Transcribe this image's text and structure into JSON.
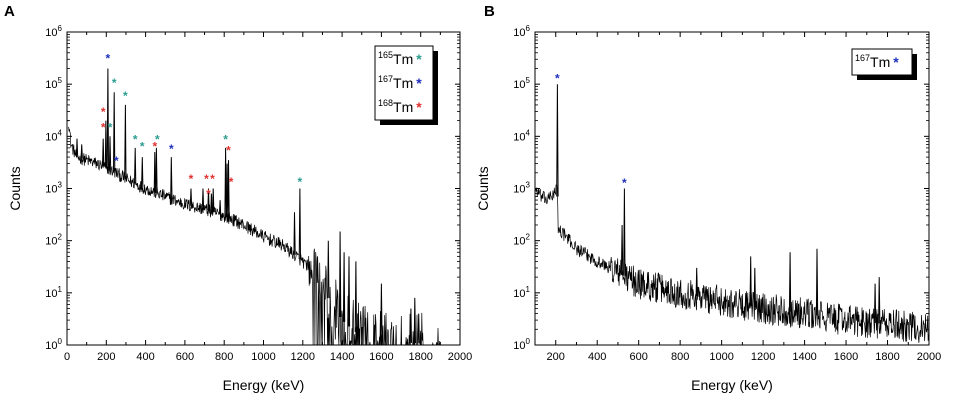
{
  "chart_data": [
    {
      "panel_label": "A",
      "type": "line",
      "xlabel": "Energy (keV)",
      "ylabel": "Counts",
      "xlim": [
        0,
        2000
      ],
      "ylim_log10": [
        0,
        6
      ],
      "x_ticks": [
        "0",
        "200",
        "400",
        "600",
        "800",
        "1000",
        "1200",
        "1400",
        "1600",
        "1800",
        "2000"
      ],
      "y_ticks": [
        {
          "base": "10",
          "exp": "0"
        },
        {
          "base": "10",
          "exp": "1"
        },
        {
          "base": "10",
          "exp": "2"
        },
        {
          "base": "10",
          "exp": "3"
        },
        {
          "base": "10",
          "exp": "4"
        },
        {
          "base": "10",
          "exp": "5"
        },
        {
          "base": "10",
          "exp": "6"
        }
      ],
      "legend": {
        "position": "top-right",
        "entries": [
          {
            "mass": "165",
            "element": "Tm",
            "marker": "*",
            "color": "#2a9d8f"
          },
          {
            "mass": "167",
            "element": "Tm",
            "marker": "*",
            "color": "#1f2fbf"
          },
          {
            "mass": "168",
            "element": "Tm",
            "marker": "*",
            "color": "#e03131"
          }
        ]
      },
      "continuum": [
        [
          8,
          20000
        ],
        [
          20,
          7000
        ],
        [
          50,
          4000
        ],
        [
          100,
          3500
        ],
        [
          150,
          3000
        ],
        [
          200,
          2500
        ],
        [
          250,
          2000
        ],
        [
          300,
          1500
        ],
        [
          400,
          1000
        ],
        [
          500,
          700
        ],
        [
          600,
          500
        ],
        [
          700,
          400
        ],
        [
          800,
          300
        ],
        [
          900,
          200
        ],
        [
          1000,
          120
        ],
        [
          1100,
          80
        ],
        [
          1200,
          40
        ],
        [
          1250,
          20
        ],
        [
          1300,
          12
        ],
        [
          1350,
          6
        ],
        [
          1400,
          3
        ],
        [
          1450,
          2
        ],
        [
          1500,
          1.5
        ],
        [
          1600,
          1.2
        ],
        [
          1900,
          1
        ]
      ],
      "peaks": [
        [
          5,
          20000
        ],
        [
          51,
          9000
        ],
        [
          75,
          7000
        ],
        [
          184,
          9000
        ],
        [
          198,
          20000
        ],
        [
          208,
          200000
        ],
        [
          219,
          10000
        ],
        [
          240,
          70000
        ],
        [
          297,
          40000
        ],
        [
          347,
          6000
        ],
        [
          383,
          4000
        ],
        [
          447,
          5000
        ],
        [
          455,
          6000
        ],
        [
          531,
          4000
        ],
        [
          631,
          1000
        ],
        [
          692,
          1000
        ],
        [
          720,
          1000
        ],
        [
          735,
          800
        ],
        [
          744,
          1000
        ],
        [
          779,
          600
        ],
        [
          807,
          6000
        ],
        [
          815,
          3000
        ],
        [
          822,
          3500
        ],
        [
          1158,
          350
        ],
        [
          1185,
          1000
        ],
        [
          1275,
          50
        ],
        [
          1330,
          100
        ],
        [
          1390,
          150
        ],
        [
          1410,
          60
        ],
        [
          1435,
          50
        ],
        [
          1470,
          40
        ],
        [
          1600,
          15
        ],
        [
          1750,
          5
        ],
        [
          1770,
          8
        ],
        [
          1790,
          4
        ]
      ],
      "noise_cutoff": 1250,
      "markers": [
        {
          "x": 208,
          "y": 340000,
          "series": "167"
        },
        {
          "x": 240,
          "y": 115000,
          "series": "165"
        },
        {
          "x": 297,
          "y": 65000,
          "series": "165"
        },
        {
          "x": 184,
          "y": 32000,
          "series": "168"
        },
        {
          "x": 184,
          "y": 16000,
          "series": "168"
        },
        {
          "x": 219,
          "y": 16000,
          "series": "165"
        },
        {
          "x": 251,
          "y": 3700,
          "series": "167"
        },
        {
          "x": 347,
          "y": 9600,
          "series": "165"
        },
        {
          "x": 383,
          "y": 7000,
          "series": "165"
        },
        {
          "x": 447,
          "y": 7000,
          "series": "168"
        },
        {
          "x": 460,
          "y": 9600,
          "series": "165"
        },
        {
          "x": 531,
          "y": 6200,
          "series": "167"
        },
        {
          "x": 631,
          "y": 1650,
          "series": "168"
        },
        {
          "x": 710,
          "y": 1650,
          "series": "168"
        },
        {
          "x": 740,
          "y": 1650,
          "series": "168"
        },
        {
          "x": 720,
          "y": 850,
          "series": "168"
        },
        {
          "x": 807,
          "y": 9600,
          "series": "165"
        },
        {
          "x": 822,
          "y": 5800,
          "series": "168"
        },
        {
          "x": 835,
          "y": 1450,
          "series": "168"
        },
        {
          "x": 1185,
          "y": 1450,
          "series": "165"
        }
      ]
    },
    {
      "panel_label": "B",
      "type": "line",
      "xlabel": "Energy (keV)",
      "ylabel": "Counts",
      "xlim": [
        100,
        2000
      ],
      "ylim_log10": [
        0,
        6
      ],
      "x_ticks": [
        "200",
        "400",
        "600",
        "800",
        "1000",
        "1200",
        "1400",
        "1600",
        "1800",
        "2000"
      ],
      "y_ticks": [
        {
          "base": "10",
          "exp": "0"
        },
        {
          "base": "10",
          "exp": "1"
        },
        {
          "base": "10",
          "exp": "2"
        },
        {
          "base": "10",
          "exp": "3"
        },
        {
          "base": "10",
          "exp": "4"
        },
        {
          "base": "10",
          "exp": "5"
        },
        {
          "base": "10",
          "exp": "6"
        }
      ],
      "legend": {
        "position": "top-right",
        "entries": [
          {
            "mass": "167",
            "element": "Tm",
            "marker": "*",
            "color": "#1f2fbf"
          }
        ]
      },
      "continuum": [
        [
          100,
          1000
        ],
        [
          130,
          700
        ],
        [
          160,
          600
        ],
        [
          190,
          800
        ],
        [
          207,
          1000
        ],
        [
          212,
          170
        ],
        [
          250,
          120
        ],
        [
          300,
          70
        ],
        [
          400,
          40
        ],
        [
          500,
          25
        ],
        [
          600,
          15
        ],
        [
          800,
          10
        ],
        [
          1000,
          7
        ],
        [
          1200,
          5
        ],
        [
          1400,
          4
        ],
        [
          1600,
          3
        ],
        [
          1800,
          2.5
        ],
        [
          2000,
          2
        ]
      ],
      "peaks": [
        [
          208,
          100000
        ],
        [
          520,
          200
        ],
        [
          531,
          1000
        ],
        [
          880,
          30
        ],
        [
          1140,
          50
        ],
        [
          1160,
          30
        ],
        [
          1330,
          60
        ],
        [
          1460,
          70
        ],
        [
          1740,
          15
        ],
        [
          1760,
          20
        ]
      ],
      "noise_cutoff": 2000,
      "markers": [
        {
          "x": 208,
          "y": 140000,
          "series": "167"
        },
        {
          "x": 531,
          "y": 1400,
          "series": "167"
        }
      ]
    }
  ]
}
